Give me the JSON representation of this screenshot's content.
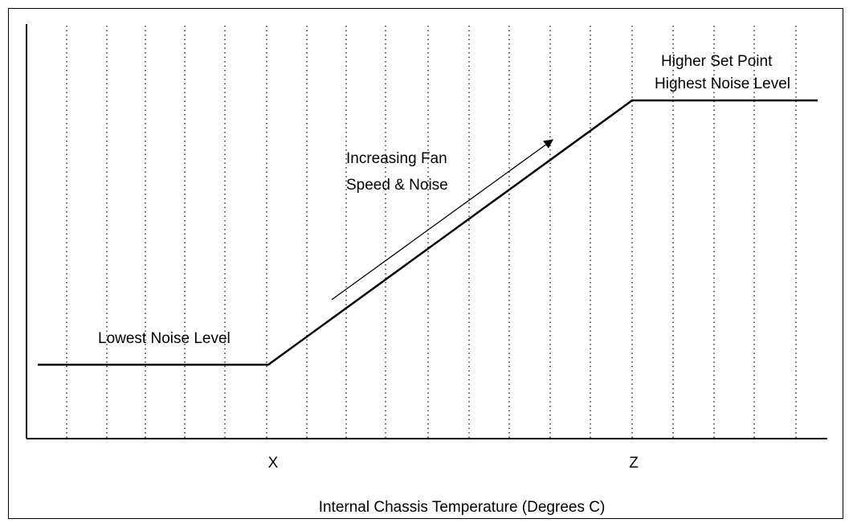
{
  "chart_data": {
    "type": "line",
    "xlabel": "Internal Chassis Temperature (Degrees C)",
    "tick_labels": [
      "X",
      "Z"
    ],
    "series": [
      {
        "values": [
          [
            "",
            "Lowest Noise Level"
          ],
          [
            "X",
            "Lowest Noise Level"
          ],
          [
            "Z",
            "Highest Noise Level"
          ],
          [
            "",
            "Highest Noise Level"
          ]
        ]
      }
    ],
    "annotations": {
      "low": "Lowest Noise Level",
      "ramp_line1": "Increasing Fan",
      "ramp_line2": "Speed & Noise",
      "high_line1": "Higher Set Point",
      "high_line2": "Highest Noise Level"
    },
    "grid": true,
    "grid_style": "dotted-vertical"
  }
}
